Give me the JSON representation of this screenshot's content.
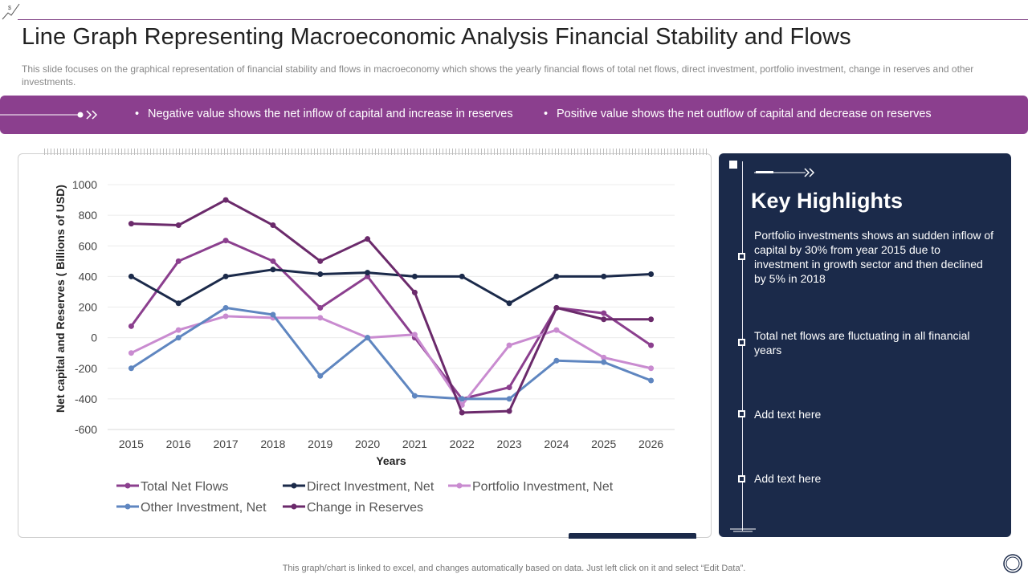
{
  "header": {
    "title": "Line Graph Representing Macroeconomic Analysis Financial Stability and Flows",
    "subtitle": "This slide focuses on the graphical representation of financial stability and flows in macroeconomy which shows the yearly financial flows of total net flows, direct investment, portfolio investment, change in reserves  and other investments."
  },
  "banner": {
    "note1": "Negative value shows the net inflow of capital and increase in reserves",
    "note2": "Positive value shows the net outflow of capital and decrease on reserves"
  },
  "highlights": {
    "title": "Key Highlights",
    "items": [
      "Portfolio investments shows an sudden inflow of capital by 30% from year 2015 due to investment in growth sector and then declined by 5% in 2018",
      "Total net flows are fluctuating in all financial years",
      "Add text here",
      "Add text here"
    ]
  },
  "footnote": "This graph/chart is linked to excel,  and changes automatically based on data. Just left click on it and select “Edit Data”.",
  "colors": {
    "accent": "#8b3f8e",
    "navy": "#1b2a4a",
    "total_net_flows": "#8b3f8e",
    "direct_investment": "#1b2a4a",
    "portfolio_investment": "#c98bd0",
    "other_investment": "#5f86c0",
    "change_in_reserves": "#6b2a6b"
  },
  "chart_data": {
    "type": "line",
    "title": "",
    "xlabel": "Years",
    "ylabel": "Net capital and Reserves ( Billions of USD)",
    "ylim": [
      -600,
      1000
    ],
    "yticks": [
      1000,
      800,
      600,
      400,
      200,
      0,
      -200,
      -400,
      -600
    ],
    "grid": true,
    "legend_position": "bottom",
    "categories": [
      "2015",
      "2016",
      "2017",
      "2018",
      "2019",
      "2020",
      "2021",
      "2022",
      "2023",
      "2024",
      "2025",
      "2026"
    ],
    "series": [
      {
        "name": "Total Net Flows",
        "color": "#8b3f8e",
        "values": [
          75,
          500,
          635,
          500,
          195,
          400,
          0,
          -400,
          -325,
          195,
          160,
          -50
        ]
      },
      {
        "name": "Direct Investment, Net",
        "color": "#1b2a4a",
        "values": [
          400,
          225,
          400,
          445,
          415,
          425,
          400,
          400,
          225,
          400,
          400,
          415
        ]
      },
      {
        "name": "Portfolio Investment, Net",
        "color": "#c98bd0",
        "values": [
          -100,
          50,
          140,
          130,
          130,
          0,
          20,
          -440,
          -50,
          50,
          -130,
          -200
        ]
      },
      {
        "name": "Other Investment, Net",
        "color": "#5f86c0",
        "values": [
          -200,
          0,
          195,
          150,
          -250,
          0,
          -380,
          -400,
          -400,
          -150,
          -160,
          -280
        ]
      },
      {
        "name": "Change in Reserves",
        "color": "#6b2a6b",
        "values": [
          745,
          735,
          900,
          735,
          500,
          645,
          295,
          -490,
          -480,
          195,
          120,
          120
        ]
      }
    ]
  }
}
